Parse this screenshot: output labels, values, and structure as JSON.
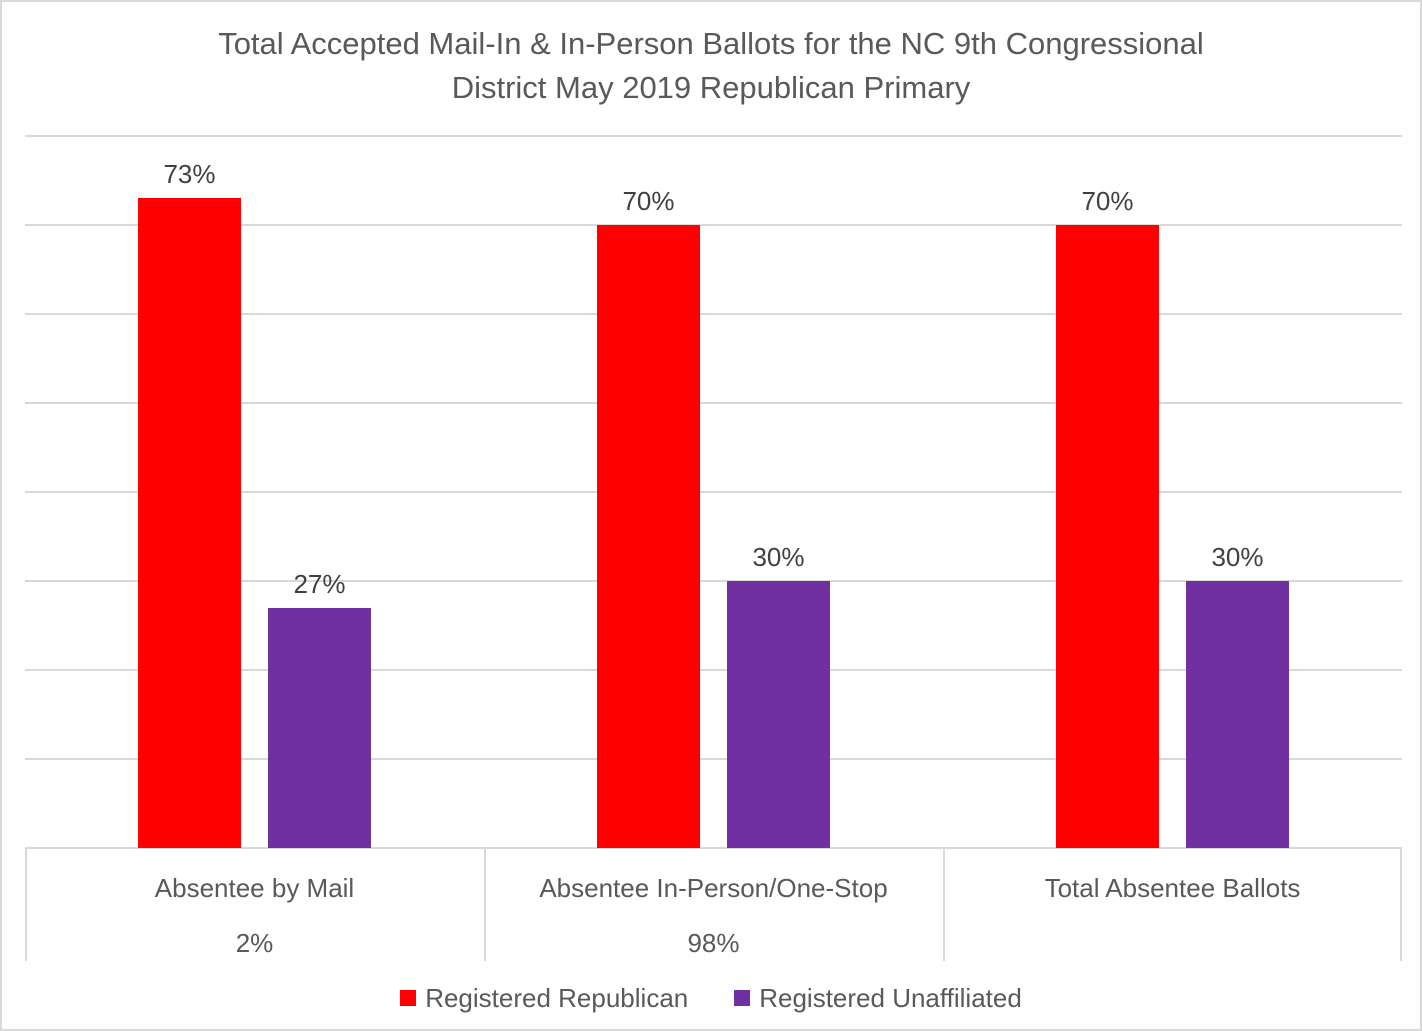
{
  "chart_data": {
    "type": "bar",
    "title": "Total Accepted Mail-In & In-Person Ballots for the NC 9th Congressional District May 2019 Republican Primary",
    "title_lines": [
      "Total Accepted Mail-In & In-Person Ballots for the NC 9th Congressional",
      "District May 2019 Republican Primary"
    ],
    "categories": [
      "Absentee by Mail",
      "Absentee In-Person/One-Stop",
      "Total Absentee Ballots"
    ],
    "category_sub_labels": [
      "2%",
      "98%",
      ""
    ],
    "series": [
      {
        "name": "Registered Republican",
        "color": "#FF0000",
        "values": [
          73,
          70,
          70
        ],
        "labels": [
          "73%",
          "70%",
          "70%"
        ]
      },
      {
        "name": "Registered Unaffiliated",
        "color": "#7030A0",
        "values": [
          27,
          30,
          30
        ],
        "labels": [
          "27%",
          "30%",
          "30%"
        ]
      }
    ],
    "value_format": "percent",
    "ylim": [
      0,
      80
    ],
    "grid_step": 10,
    "grid": true,
    "y_axis_labels_visible": false,
    "legend_position": "bottom"
  },
  "colors": {
    "background": "#FFFFFF",
    "grid": "#D9D9D9",
    "chart_border": "#D9D9D9",
    "title_text": "#595959",
    "axis_text": "#595959",
    "data_label_text": "#404040"
  }
}
